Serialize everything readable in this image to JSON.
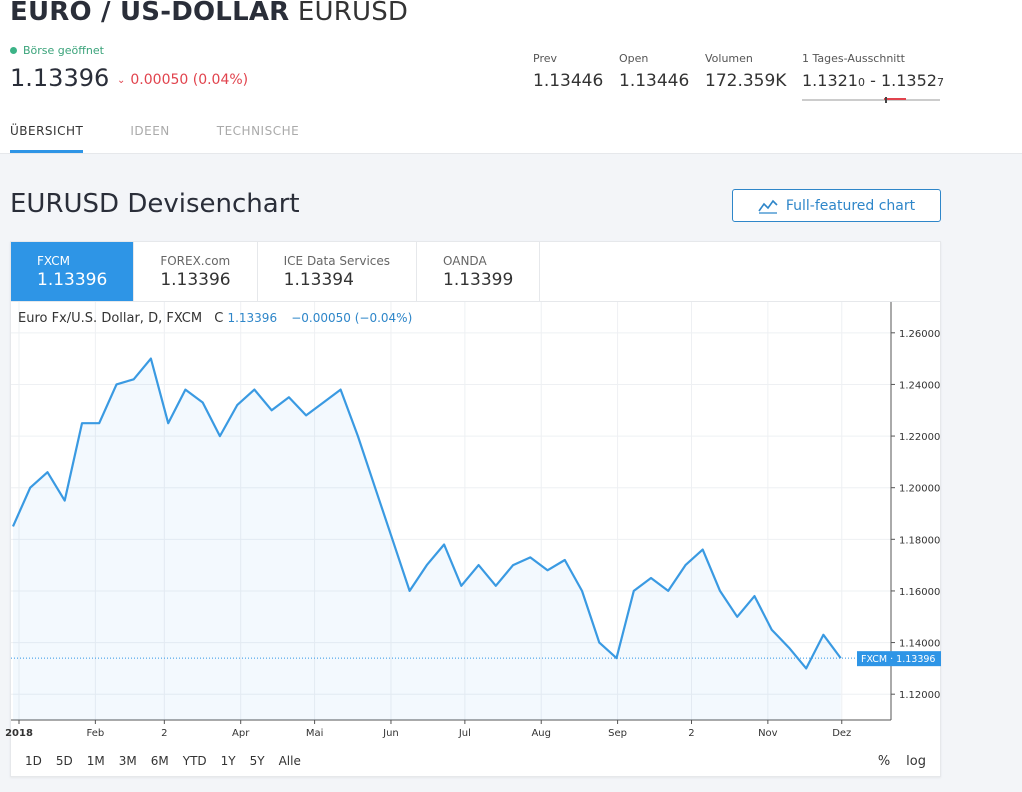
{
  "header": {
    "name": "EURO / US-DOLLAR",
    "symbol": "EURUSD",
    "market_status": "Börse geöffnet",
    "price": "1.13396",
    "change": "0.00050 (0.04%)"
  },
  "stats": {
    "prev": {
      "label": "Prev",
      "value": "1.13446"
    },
    "open": {
      "label": "Open",
      "value": "1.13446"
    },
    "volume": {
      "label": "Volumen",
      "value": "172.359K"
    },
    "range": {
      "label": "1 Tages-Ausschnitt",
      "low_main": "1.1321",
      "low_small": "0",
      "sep": "-",
      "high_main": "1.1352",
      "high_small": "7"
    }
  },
  "tabs": [
    "ÜBERSICHT",
    "IDEEN",
    "TECHNISCHE"
  ],
  "section_title": "EURUSD Devisenchart",
  "full_chart_button": "Full-featured chart",
  "sources": [
    {
      "name": "FXCM",
      "value": "1.13396"
    },
    {
      "name": "FOREX.com",
      "value": "1.13396"
    },
    {
      "name": "ICE Data Services",
      "value": "1.13394"
    },
    {
      "name": "OANDA",
      "value": "1.13399"
    }
  ],
  "legend": {
    "title": "Euro Fx/U.S. Dollar, D, FXCM",
    "c_label": "C",
    "c_value": "1.13396",
    "change": "−0.00050 (−0.04%)"
  },
  "range_buttons": [
    "1D",
    "5D",
    "1M",
    "3M",
    "6M",
    "YTD",
    "1Y",
    "5Y",
    "Alle"
  ],
  "scale_buttons": [
    "%",
    "log"
  ],
  "colors": {
    "accent": "#2e95e6",
    "line": "#3a9ae2",
    "down": "#e1434d",
    "open": "#3cb387"
  },
  "chart_data": {
    "type": "area",
    "series": [
      {
        "name": "FXCM",
        "last_label": "1.13396"
      }
    ],
    "x": [
      "2018-01-01",
      "2018-01-08",
      "2018-01-15",
      "2018-01-22",
      "2018-01-29",
      "2018-02-05",
      "2018-02-12",
      "2018-02-19",
      "2018-02-26",
      "2018-03-05",
      "2018-03-12",
      "2018-03-19",
      "2018-03-26",
      "2018-04-02",
      "2018-04-09",
      "2018-04-16",
      "2018-04-23",
      "2018-04-30",
      "2018-05-07",
      "2018-05-14",
      "2018-05-21",
      "2018-05-28",
      "2018-06-04",
      "2018-06-11",
      "2018-06-18",
      "2018-06-25",
      "2018-07-02",
      "2018-07-09",
      "2018-07-16",
      "2018-07-23",
      "2018-07-30",
      "2018-08-06",
      "2018-08-13",
      "2018-08-20",
      "2018-08-27",
      "2018-09-03",
      "2018-09-10",
      "2018-09-17",
      "2018-09-24",
      "2018-10-01",
      "2018-10-08",
      "2018-10-15",
      "2018-10-22",
      "2018-10-29",
      "2018-11-05",
      "2018-11-12",
      "2018-11-19",
      "2018-11-26",
      "2018-12-03"
    ],
    "y": [
      1.185,
      1.2,
      1.206,
      1.195,
      1.225,
      1.225,
      1.24,
      1.242,
      1.25,
      1.225,
      1.238,
      1.233,
      1.22,
      1.232,
      1.238,
      1.23,
      1.235,
      1.228,
      1.233,
      1.238,
      1.22,
      1.2,
      1.18,
      1.16,
      1.17,
      1.178,
      1.162,
      1.17,
      1.162,
      1.17,
      1.173,
      1.168,
      1.172,
      1.16,
      1.14,
      1.134,
      1.16,
      1.165,
      1.16,
      1.17,
      1.176,
      1.16,
      1.15,
      1.158,
      1.145,
      1.138,
      1.13,
      1.143,
      1.134
    ],
    "x_ticks": [
      "2018",
      "Feb",
      "2",
      "Apr",
      "Mai",
      "Jun",
      "Jul",
      "Aug",
      "Sep",
      "2",
      "Nov",
      "Dez"
    ],
    "y_ticks": [
      "1.26000",
      "1.24000",
      "1.22000",
      "1.20000",
      "1.18000",
      "1.16000",
      "1.14000",
      "1.12000"
    ],
    "ylim": [
      1.11,
      1.27
    ],
    "current": 1.13396,
    "grid": true
  }
}
